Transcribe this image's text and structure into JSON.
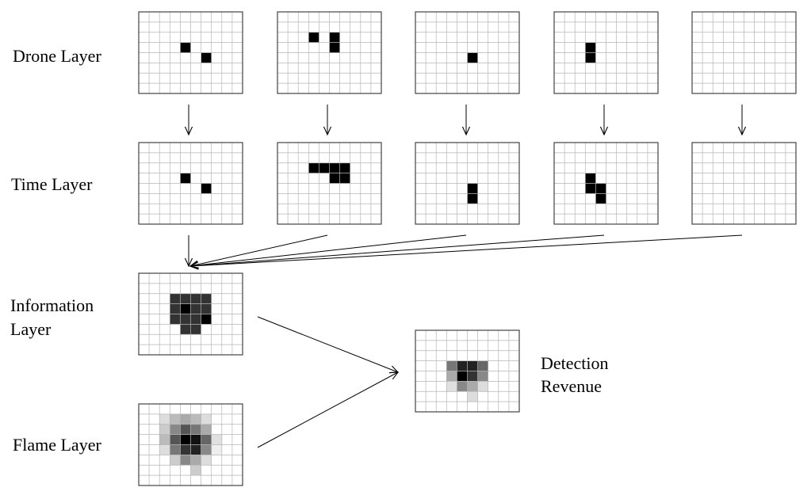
{
  "labels": {
    "drone": "Drone Layer",
    "time": "Time Layer",
    "info_line1": "Information",
    "info_line2": "Layer",
    "flame": "Flame Layer",
    "detection_line1": "Detection",
    "detection_line2": "Revenue"
  },
  "grid": {
    "cols": 10,
    "rows": 8
  },
  "drone_layer": [
    [
      [
        4,
        3
      ],
      [
        6,
        4
      ]
    ],
    [
      [
        3,
        2
      ],
      [
        5,
        2
      ],
      [
        5,
        3
      ]
    ],
    [
      [
        5,
        4
      ]
    ],
    [
      [
        3,
        3
      ],
      [
        3,
        4
      ]
    ],
    []
  ],
  "time_layer": [
    [
      [
        4,
        3
      ],
      [
        6,
        4
      ]
    ],
    [
      [
        3,
        2
      ],
      [
        4,
        2
      ],
      [
        5,
        2
      ],
      [
        6,
        2
      ],
      [
        5,
        3
      ],
      [
        6,
        3
      ]
    ],
    [
      [
        5,
        4
      ],
      [
        5,
        5
      ]
    ],
    [
      [
        3,
        3
      ],
      [
        3,
        4
      ],
      [
        4,
        4
      ],
      [
        4,
        5
      ]
    ],
    []
  ],
  "information_layer": {
    "dark_cells": [
      [
        3,
        2
      ],
      [
        4,
        2
      ],
      [
        5,
        2
      ],
      [
        6,
        2
      ],
      [
        3,
        3
      ],
      [
        5,
        3
      ],
      [
        6,
        3
      ],
      [
        3,
        4
      ],
      [
        4,
        4
      ],
      [
        5,
        4
      ],
      [
        4,
        5
      ],
      [
        5,
        5
      ]
    ],
    "black_cells": [
      [
        4,
        3
      ],
      [
        6,
        4
      ]
    ],
    "dark_color": "#333333",
    "black_color": "#000000"
  },
  "flame_layer": [
    [
      2,
      1,
      "#dddddd"
    ],
    [
      3,
      1,
      "#bbbbbb"
    ],
    [
      4,
      1,
      "#aaaaaa"
    ],
    [
      5,
      1,
      "#bbbbbb"
    ],
    [
      6,
      1,
      "#dddddd"
    ],
    [
      2,
      2,
      "#cccccc"
    ],
    [
      3,
      2,
      "#888888"
    ],
    [
      4,
      2,
      "#555555"
    ],
    [
      5,
      2,
      "#777777"
    ],
    [
      6,
      2,
      "#aaaaaa"
    ],
    [
      2,
      3,
      "#bbbbbb"
    ],
    [
      3,
      3,
      "#555555"
    ],
    [
      4,
      3,
      "#000000"
    ],
    [
      5,
      3,
      "#111111"
    ],
    [
      6,
      3,
      "#666666"
    ],
    [
      7,
      3,
      "#e0e0e0"
    ],
    [
      2,
      4,
      "#dddddd"
    ],
    [
      3,
      4,
      "#777777"
    ],
    [
      4,
      4,
      "#333333"
    ],
    [
      5,
      4,
      "#222222"
    ],
    [
      6,
      4,
      "#888888"
    ],
    [
      7,
      4,
      "#eeeeee"
    ],
    [
      3,
      5,
      "#cccccc"
    ],
    [
      4,
      5,
      "#888888"
    ],
    [
      5,
      5,
      "#aaaaaa"
    ],
    [
      6,
      5,
      "#dddddd"
    ],
    [
      5,
      6,
      "#cccccc"
    ]
  ],
  "detection_revenue": [
    [
      3,
      3,
      "#777777"
    ],
    [
      4,
      3,
      "#222222"
    ],
    [
      5,
      3,
      "#222222"
    ],
    [
      6,
      3,
      "#666666"
    ],
    [
      3,
      4,
      "#aaaaaa"
    ],
    [
      4,
      4,
      "#000000"
    ],
    [
      5,
      4,
      "#333333"
    ],
    [
      6,
      4,
      "#888888"
    ],
    [
      3,
      5,
      "#e0e0e0"
    ],
    [
      4,
      5,
      "#888888"
    ],
    [
      5,
      5,
      "#aaaaaa"
    ],
    [
      6,
      5,
      "#dddddd"
    ],
    [
      5,
      6,
      "#dddddd"
    ]
  ]
}
